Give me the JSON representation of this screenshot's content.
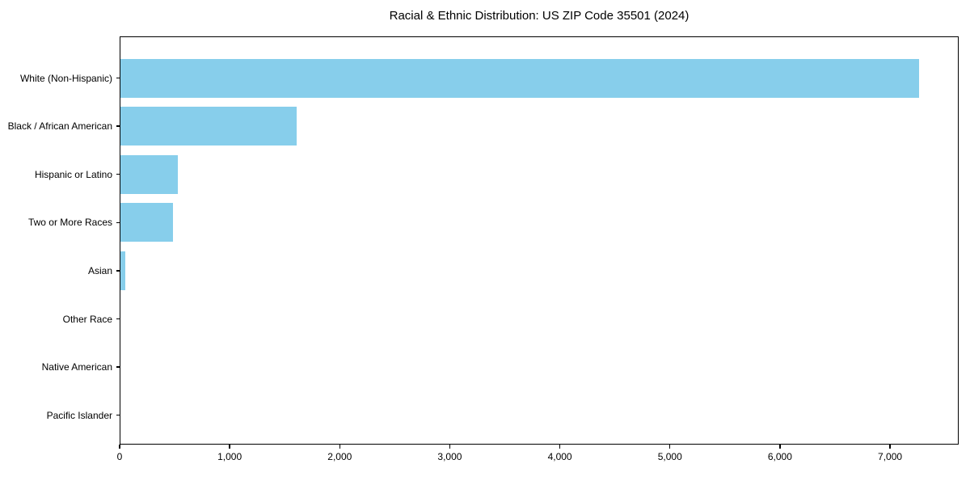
{
  "chart_data": {
    "type": "bar",
    "orientation": "horizontal",
    "title": "Racial & Ethnic Distribution: US ZIP Code 35501 (2024)",
    "categories": [
      "White (Non-Hispanic)",
      "Black / African American",
      "Hispanic or Latino",
      "Two or More Races",
      "Asian",
      "Other Race",
      "Native American",
      "Pacific Islander"
    ],
    "values": [
      7261,
      1612,
      527,
      483,
      51,
      8,
      0,
      0
    ],
    "xlabel": "",
    "ylabel": "",
    "xlim": [
      0,
      7624
    ],
    "xticks": [
      0,
      1000,
      2000,
      3000,
      4000,
      5000,
      6000,
      7000
    ],
    "xtick_labels": [
      "0",
      "1,000",
      "2,000",
      "3,000",
      "4,000",
      "5,000",
      "6,000",
      "7,000"
    ],
    "bar_color": "#87CEEB",
    "axis_color": "#000000",
    "text_color": "#000000",
    "background": "#FFFFFF",
    "grid": false,
    "legend": "none"
  }
}
